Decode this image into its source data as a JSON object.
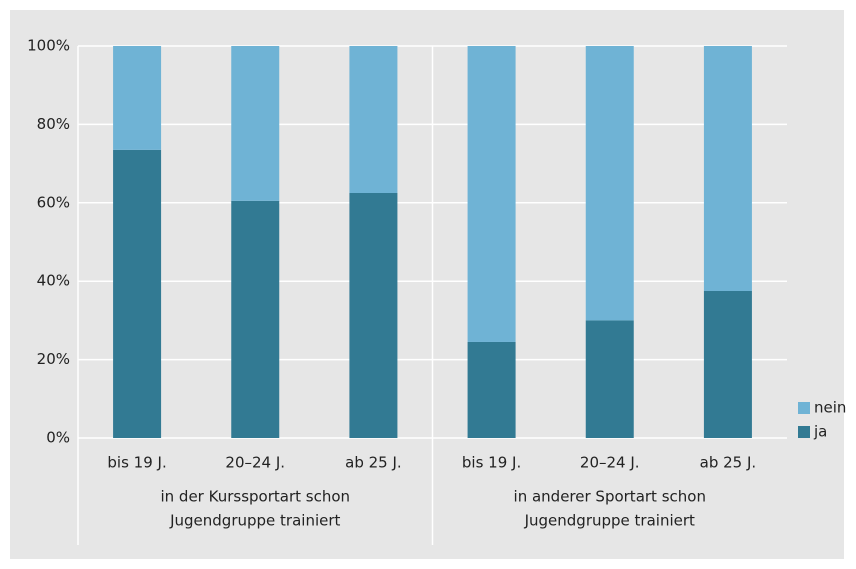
{
  "chart_data": {
    "type": "stacked_bar",
    "categories": [
      "bis 19 J.",
      "20–24 J.",
      "ab 25 J.",
      "bis 19 J.",
      "20–24 J.",
      "ab 25 J."
    ],
    "groups": [
      {
        "lines": [
          "in der Kurssportart schon",
          "Jugendgruppe trainiert"
        ]
      },
      {
        "lines": [
          "in anderer Sportart schon",
          "Jugendgruppe trainiert"
        ]
      }
    ],
    "series": [
      {
        "name": "ja",
        "color": "#327a93",
        "values": [
          73.5,
          60.5,
          62.5,
          24.5,
          30,
          37.5
        ]
      },
      {
        "name": "nein",
        "color": "#6fb3d5",
        "values": [
          26.5,
          39.5,
          37.5,
          75.5,
          70,
          62.5
        ]
      }
    ],
    "ylim": [
      0,
      100
    ],
    "yticks": [
      {
        "value": 0,
        "label": "0%"
      },
      {
        "value": 20,
        "label": "20%"
      },
      {
        "value": 40,
        "label": "40%"
      },
      {
        "value": 60,
        "label": "60%"
      },
      {
        "value": 80,
        "label": "80%"
      },
      {
        "value": 100,
        "label": "100%"
      }
    ],
    "grid": true,
    "legend": "right"
  }
}
